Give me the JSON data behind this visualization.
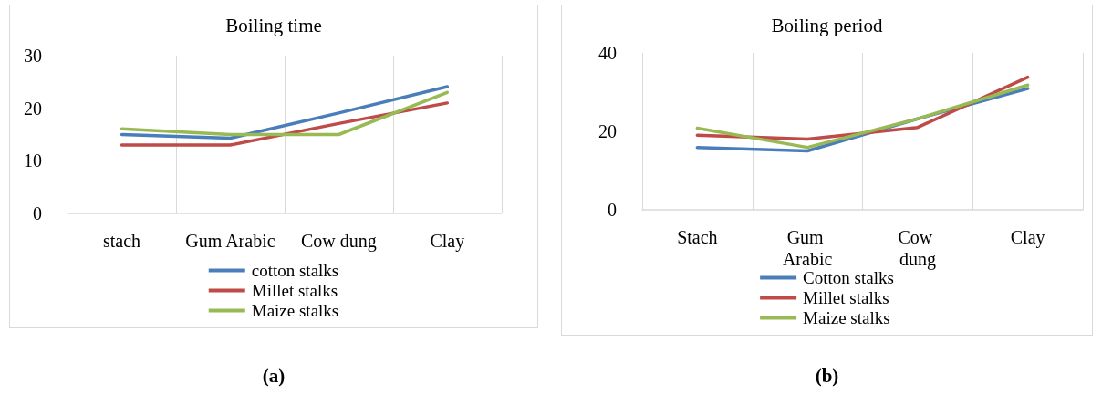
{
  "chart_data": [
    {
      "type": "line",
      "title": "Boiling time",
      "categories": [
        "stach",
        "Gum Arabic",
        "Cow dung",
        "Clay"
      ],
      "series": [
        {
          "name": "cotton stalks",
          "color": "#4a7ebb",
          "values": [
            15,
            14.3,
            19.1,
            24.1
          ]
        },
        {
          "name": "Millet stalks",
          "color": "#be4b48",
          "values": [
            13,
            13,
            17.1,
            21
          ]
        },
        {
          "name": "Maize stalks",
          "color": "#98b954",
          "values": [
            16.1,
            15,
            15,
            23
          ]
        }
      ],
      "ylim": [
        0,
        30
      ],
      "yticks": [
        0,
        10,
        20,
        30
      ],
      "grid": "x",
      "legend": "bottom",
      "marker": "none",
      "line_style": "solid",
      "annotations": [
        "(a)"
      ]
    },
    {
      "type": "line",
      "title": "Boiling period",
      "categories": [
        "Stach",
        "Gum Arabic",
        "Cow dung",
        "Clay"
      ],
      "series": [
        {
          "name": "Cotton stalks",
          "color": "#4a7ebb",
          "values": [
            15.9,
            15,
            23.2,
            30.9
          ]
        },
        {
          "name": "Millet stalks",
          "color": "#be4b48",
          "values": [
            19,
            18,
            21,
            33.8
          ]
        },
        {
          "name": "Maize stalks",
          "color": "#98b954",
          "values": [
            20.8,
            15.9,
            23.2,
            31.8
          ]
        }
      ],
      "ylim": [
        0,
        40
      ],
      "yticks": [
        0,
        20,
        40
      ],
      "grid": "x",
      "legend": "bottom",
      "marker": "none",
      "line_style": "solid",
      "annotations": [
        "(b)"
      ]
    }
  ]
}
